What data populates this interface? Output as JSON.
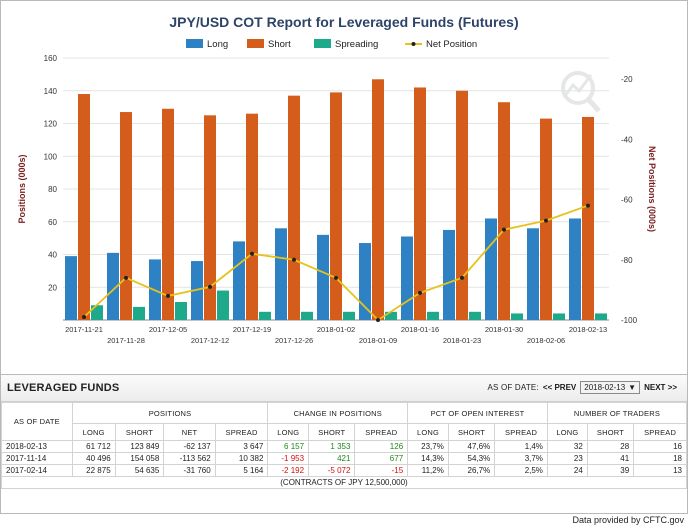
{
  "chart_data": {
    "type": "bar",
    "title": "JPY/USD COT Report for Leveraged Funds (Futures)",
    "categories": [
      "2017-11-21",
      "2017-11-28",
      "2017-12-05",
      "2017-12-12",
      "2017-12-19",
      "2017-12-26",
      "2018-01-02",
      "2018-01-09",
      "2018-01-16",
      "2018-01-23",
      "2018-01-30",
      "2018-02-06",
      "2018-02-13"
    ],
    "series": [
      {
        "name": "Long",
        "type": "bar",
        "axis": "left",
        "color": "#2e82c4",
        "values": [
          39,
          41,
          37,
          36,
          48,
          56,
          52,
          47,
          51,
          55,
          62,
          56,
          62
        ]
      },
      {
        "name": "Short",
        "type": "bar",
        "axis": "left",
        "color": "#d45d1c",
        "values": [
          138,
          127,
          129,
          125,
          126,
          137,
          139,
          147,
          142,
          140,
          133,
          123,
          124
        ]
      },
      {
        "name": "Spreading",
        "type": "bar",
        "axis": "left",
        "color": "#1ea98a",
        "values": [
          9,
          8,
          11,
          18,
          5,
          5,
          5,
          5,
          5,
          5,
          4,
          4,
          4
        ]
      },
      {
        "name": "Net Position",
        "type": "line",
        "axis": "right",
        "color": "#e6c21c",
        "values": [
          -99,
          -86,
          -92,
          -89,
          -78,
          -80,
          -86,
          -100,
          -91,
          -86,
          -70,
          -67,
          -62
        ]
      }
    ],
    "ylabel": "Positions (000s)",
    "y2label": "Net Positions (000s)",
    "ylim": [
      0,
      160
    ],
    "yticks": [
      20,
      40,
      60,
      80,
      100,
      120,
      140,
      160
    ],
    "y2lim": [
      -100,
      -13
    ],
    "y2ticks": [
      -20,
      -40,
      -60,
      -80,
      -100
    ],
    "legend_position": "top"
  },
  "panel": {
    "title": "LEVERAGED FUNDS",
    "asof_label": "AS OF DATE:",
    "prev_label": "<< PREV",
    "selected_date": "2018-02-13",
    "next_label": "NEXT >>",
    "headers": {
      "asof": "AS OF DATE",
      "positions": "POSITIONS",
      "change": "CHANGE IN POSITIONS",
      "pct": "PCT OF OPEN INTEREST",
      "traders": "NUMBER OF TRADERS",
      "positions_cols": [
        "LONG",
        "SHORT",
        "NET",
        "SPREAD"
      ],
      "change_cols": [
        "LONG",
        "SHORT",
        "SPREAD"
      ],
      "pct_cols": [
        "LONG",
        "SHORT",
        "SPREAD"
      ],
      "traders_cols": [
        "LONG",
        "SHORT",
        "SPREAD"
      ]
    },
    "rows": [
      {
        "date": "2018-02-13",
        "long": "61 712",
        "short": "123 849",
        "net": "-62 137",
        "spread": "3 647",
        "ch_long": "6 157",
        "ch_short": "1 353",
        "ch_spread": "126",
        "pct_long": "23,7%",
        "pct_short": "47,6%",
        "pct_spread": "1,4%",
        "tr_long": "32",
        "tr_short": "28",
        "tr_spread": "16"
      },
      {
        "date": "2017-11-14",
        "long": "40 496",
        "short": "154 058",
        "net": "-113 562",
        "spread": "10 382",
        "ch_long": "-1 953",
        "ch_short": "421",
        "ch_spread": "677",
        "pct_long": "14,3%",
        "pct_short": "54,3%",
        "pct_spread": "3,7%",
        "tr_long": "23",
        "tr_short": "41",
        "tr_spread": "18"
      },
      {
        "date": "2017-02-14",
        "long": "22 875",
        "short": "54 635",
        "net": "-31 760",
        "spread": "5 164",
        "ch_long": "-2 192",
        "ch_short": "-5 072",
        "ch_spread": "-15",
        "pct_long": "11,2%",
        "pct_short": "26,7%",
        "pct_spread": "2,5%",
        "tr_long": "24",
        "tr_short": "39",
        "tr_spread": "13"
      }
    ],
    "contracts_note": "(CONTRACTS OF JPY 12,500,000)"
  },
  "footer": "Data provided by CFTC.gov"
}
